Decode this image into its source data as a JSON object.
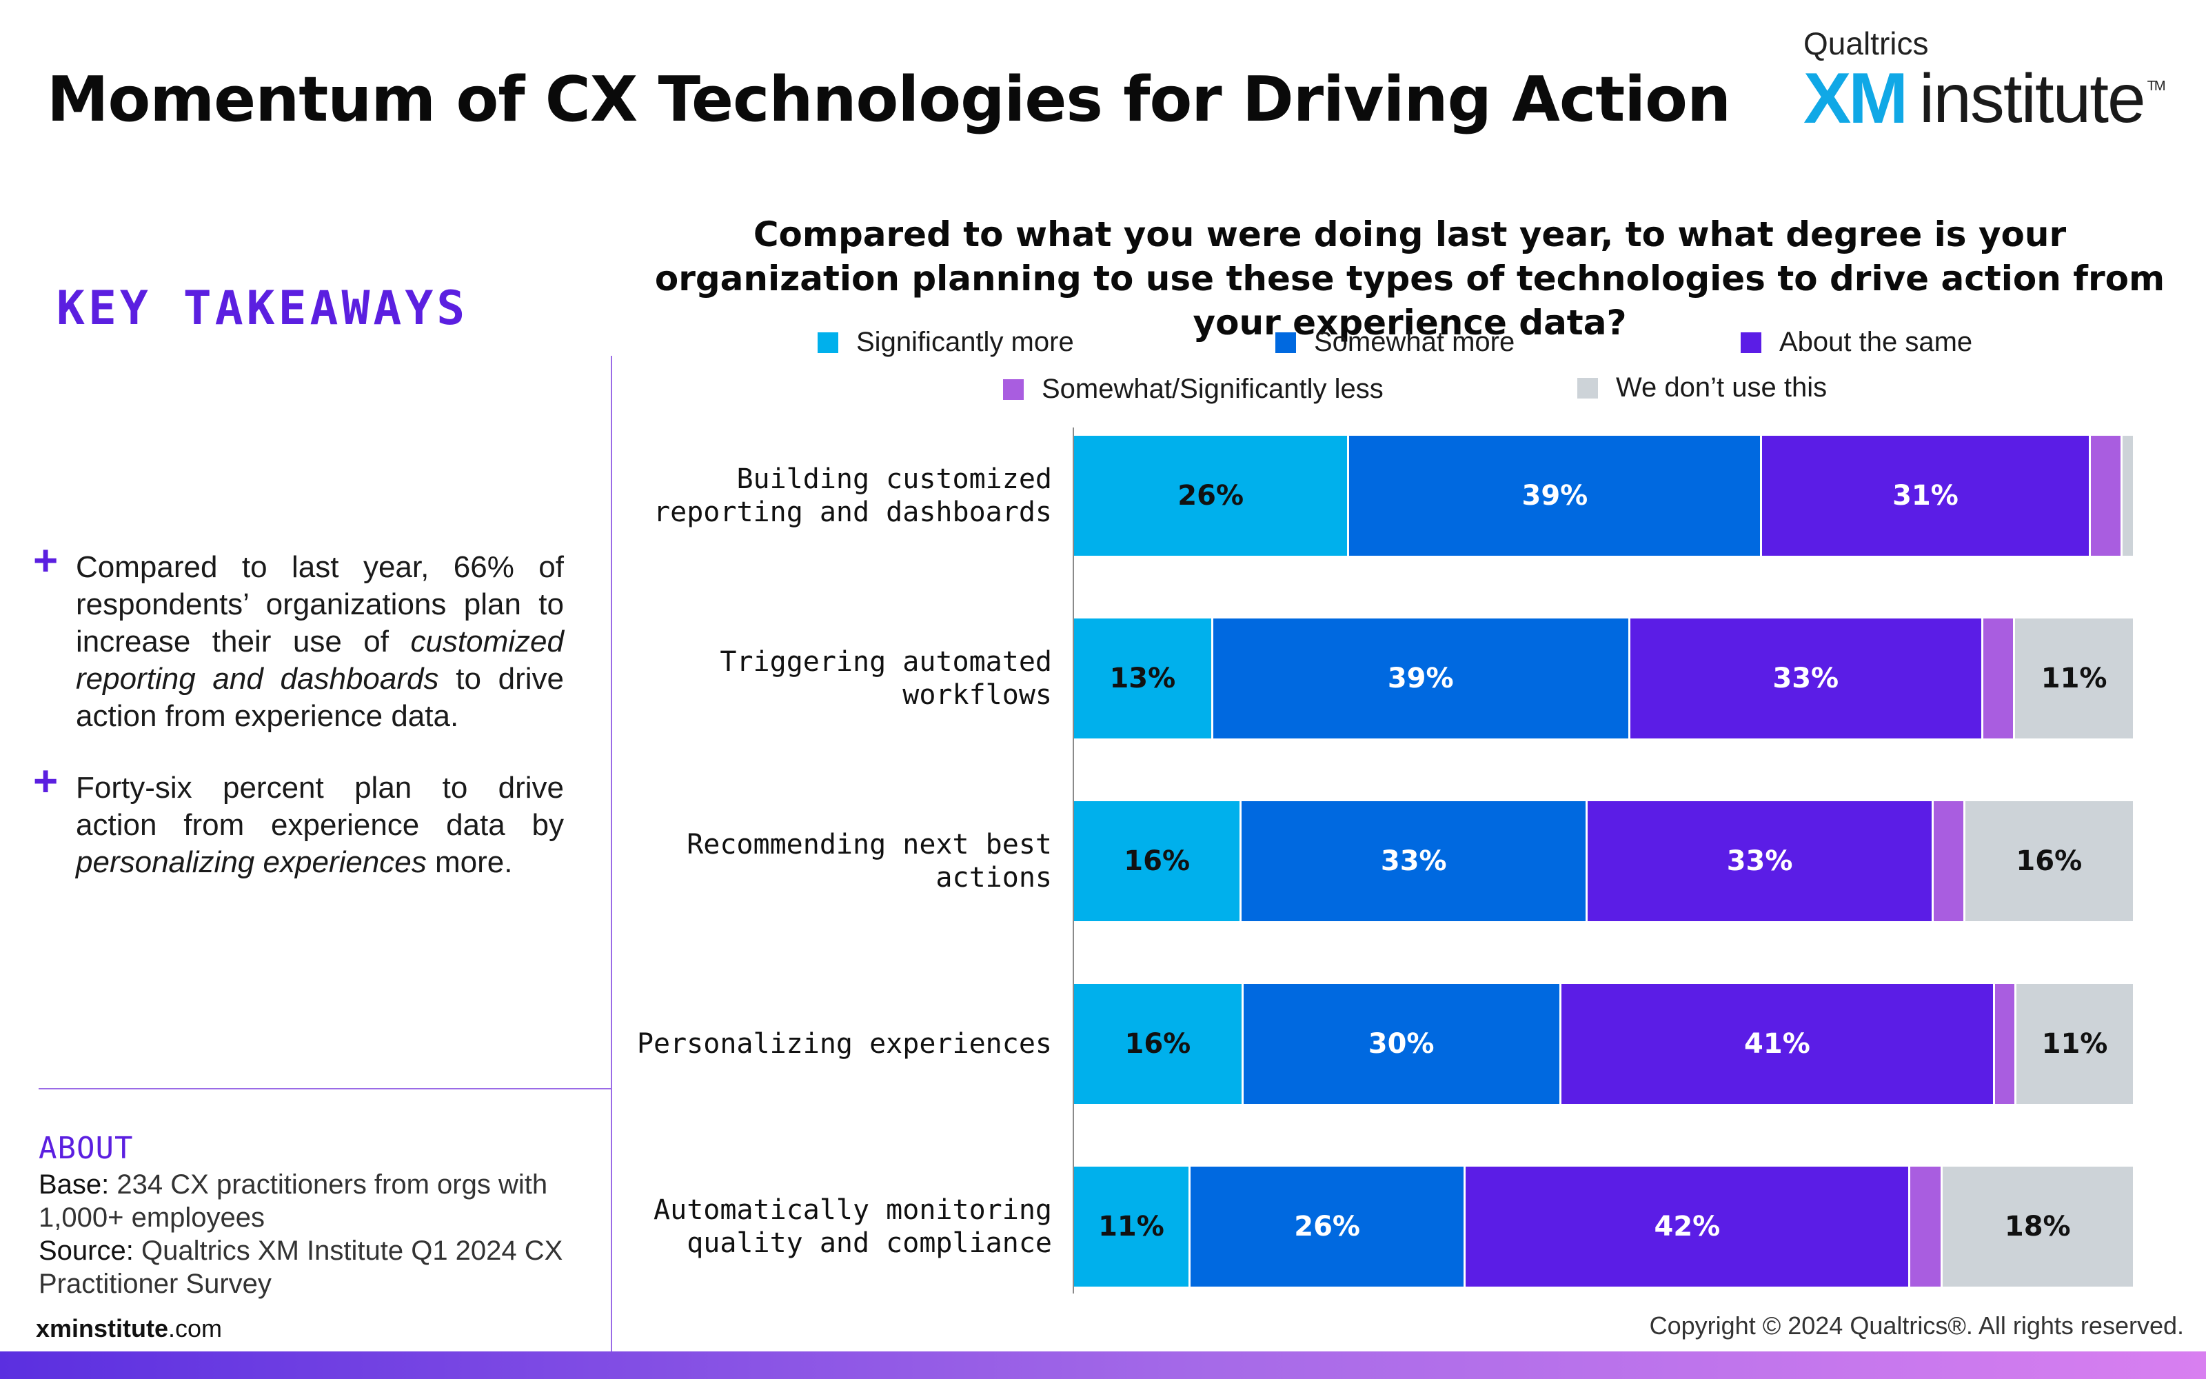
{
  "header": {
    "title": "Momentum of CX Technologies for Driving Action",
    "logo_top": "Qualtrics",
    "logo_xm": "XM",
    "logo_institute": "institute",
    "logo_tm": "TM"
  },
  "sidebar": {
    "heading": "KEY TAKEAWAYS",
    "takeaways": [
      {
        "pre": "Compared to last year, 66% of respondents’ organizations plan to increase their use of ",
        "em": "customized reporting and dashboards",
        "post": " to drive action from experience data."
      },
      {
        "pre": "Forty-six percent plan to drive action from experience data by ",
        "em": "personalizing experiences",
        "post": " more."
      }
    ],
    "about": {
      "heading": "ABOUT",
      "base_label": "Base:",
      "base_text": " 234 CX practitioners from orgs with 1,000+ employees",
      "source_label": "Source:",
      "source_text": " Qualtrics XM Institute Q1 2024 CX Practitioner Survey"
    }
  },
  "footer": {
    "site_bold": "xminstitute",
    "site_rest": ".com",
    "copyright": "Copyright © 2024 Qualtrics®. All rights reserved."
  },
  "chart_data": {
    "type": "bar",
    "orientation": "horizontal",
    "stacked": true,
    "title": "Compared to what you were doing last year, to what degree is your organization planning to use these types of technologies to drive action from your experience data?",
    "xlim": [
      0,
      100
    ],
    "legend_position": "top",
    "grid": false,
    "categories": [
      [
        "Building customized",
        "reporting and dashboards"
      ],
      [
        "Triggering automated",
        "workflows"
      ],
      [
        "Recommending next best",
        "actions"
      ],
      [
        "Personalizing experiences"
      ],
      [
        "Automatically monitoring",
        "quality and compliance"
      ]
    ],
    "series": [
      {
        "name": "Significantly more",
        "color": "#00b0ec",
        "text_color": "#111111",
        "values": [
          26,
          13,
          16,
          16,
          11
        ]
      },
      {
        "name": "Somewhat more",
        "color": "#0069e0",
        "text_color": "#ffffff",
        "values": [
          39,
          39,
          33,
          30,
          26
        ]
      },
      {
        "name": "About the same",
        "color": "#5b1de6",
        "text_color": "#ffffff",
        "values": [
          31,
          33,
          33,
          41,
          42
        ]
      },
      {
        "name": "Somewhat/Significantly less",
        "color": "#a95de0",
        "text_color": "#ffffff",
        "values": [
          3,
          3,
          3,
          2,
          3
        ]
      },
      {
        "name": "We don’t use this",
        "color": "#cdd3d8",
        "text_color": "#111111",
        "values": [
          1,
          11,
          16,
          11,
          18
        ]
      }
    ],
    "data_labels": [
      [
        "26%",
        "39%",
        "31%",
        "",
        ""
      ],
      [
        "13%",
        "39%",
        "33%",
        "",
        "11%"
      ],
      [
        "16%",
        "33%",
        "33%",
        "",
        "16%"
      ],
      [
        "16%",
        "30%",
        "41%",
        "",
        "11%"
      ],
      [
        "11%",
        "26%",
        "42%",
        "",
        "18%"
      ]
    ]
  }
}
